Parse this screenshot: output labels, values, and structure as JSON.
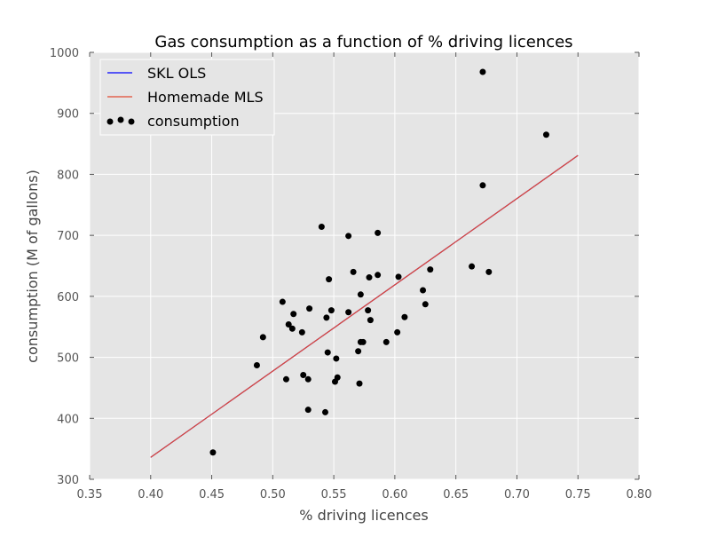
{
  "chart_data": {
    "type": "scatter",
    "title": "Gas consumption as a function of % driving licences",
    "xlabel": "% driving licences",
    "ylabel": "consumption (M of gallons)",
    "xlim": [
      0.35,
      0.8
    ],
    "ylim": [
      300,
      1000
    ],
    "xticks": [
      "0.35",
      "0.40",
      "0.45",
      "0.50",
      "0.55",
      "0.60",
      "0.65",
      "0.70",
      "0.75",
      "0.80"
    ],
    "yticks": [
      "300",
      "400",
      "500",
      "600",
      "700",
      "800",
      "900",
      "1000"
    ],
    "grid": true,
    "legend_position": "top-left",
    "series": [
      {
        "name": "SKL OLS",
        "type": "line",
        "color": "#0000ff",
        "x": [
          0.4,
          0.75
        ],
        "y": [
          336,
          831
        ]
      },
      {
        "name": "Homemade MLS",
        "type": "line",
        "color": "#e24a33",
        "x": [
          0.4,
          0.75
        ],
        "y": [
          336,
          831
        ]
      },
      {
        "name": "consumption",
        "type": "scatter",
        "color": "#000000",
        "x": [
          0.451,
          0.487,
          0.492,
          0.508,
          0.511,
          0.513,
          0.516,
          0.517,
          0.524,
          0.525,
          0.529,
          0.529,
          0.53,
          0.54,
          0.543,
          0.544,
          0.545,
          0.546,
          0.548,
          0.551,
          0.552,
          0.553,
          0.562,
          0.562,
          0.566,
          0.57,
          0.571,
          0.572,
          0.572,
          0.574,
          0.578,
          0.579,
          0.58,
          0.586,
          0.586,
          0.593,
          0.602,
          0.603,
          0.608,
          0.623,
          0.625,
          0.629,
          0.663,
          0.672,
          0.672,
          0.677,
          0.724
        ],
        "y": [
          344,
          487,
          533,
          591,
          464,
          554,
          547,
          571,
          541,
          471,
          414,
          464,
          580,
          714,
          410,
          565,
          508,
          628,
          577,
          460,
          498,
          467,
          699,
          574,
          640,
          510,
          457,
          603,
          525,
          525,
          577,
          631,
          561,
          704,
          635,
          525,
          541,
          632,
          566,
          610,
          587,
          644,
          649,
          968,
          782,
          640,
          865
        ]
      }
    ]
  }
}
